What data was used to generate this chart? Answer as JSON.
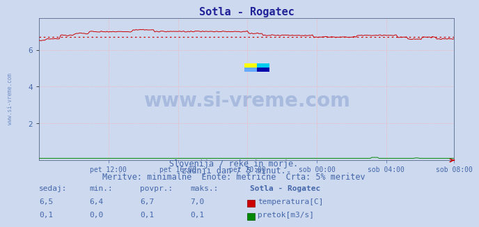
{
  "title": "Sotla - Rogatec",
  "bg_color": "#ccd9ee",
  "plot_bg_color": "#ccd9ee",
  "grid_color": "#ffaaaa",
  "temp_color": "#cc0000",
  "flow_color": "#008800",
  "avg_line_color": "#cc0000",
  "ylim": [
    0,
    7.74
  ],
  "yticks": [
    2,
    4,
    6
  ],
  "tick_color": "#4466aa",
  "title_color": "#222299",
  "title_fontsize": 11,
  "subtitle1": "Slovenija / reke in morje.",
  "subtitle2": "zadnji dan / 5 minut.",
  "subtitle3": "Meritve: minimalne  Enote: metrične  Črta: 5% meritev",
  "subtitle_color": "#4466aa",
  "subtitle_fontsize": 8.5,
  "x_tick_labels": [
    "pet 12:00",
    "pet 16:00",
    "pet 20:00",
    "sob 00:00",
    "sob 04:00",
    "sob 08:00"
  ],
  "watermark": "www.si-vreme.com",
  "watermark_color": "#5577bb",
  "watermark_alpha": 0.3,
  "table_headers": [
    "sedaj:",
    "min.:",
    "povpr.:",
    "maks.:",
    "Sotla - Rogatec"
  ],
  "table_temp": [
    "6,5",
    "6,4",
    "6,7",
    "7,0"
  ],
  "table_flow": [
    "0,1",
    "0,0",
    "0,1",
    "0,1"
  ],
  "legend_temp": "temperatura[C]",
  "legend_flow": "pretok[m3/s]",
  "temp_avg": 6.7,
  "n_points": 288
}
